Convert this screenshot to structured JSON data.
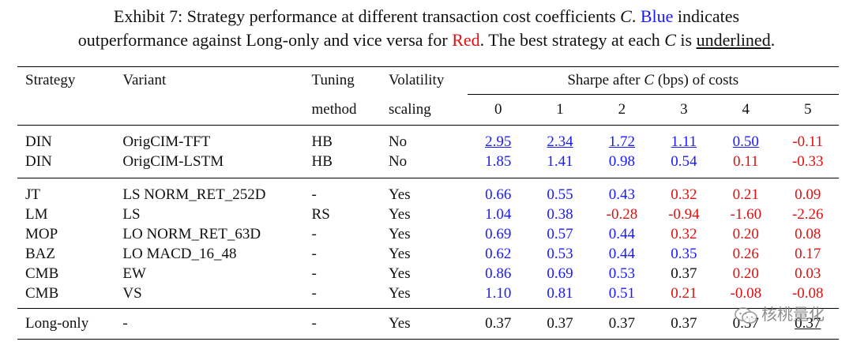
{
  "caption": {
    "part1": "Exhibit 7:  Strategy performance at different transaction cost coefficients ",
    "var_c": "C",
    "part2": ". ",
    "blue_word": "Blue",
    "part3": " indicates",
    "part4": "outperformance against Long-only and vice versa for ",
    "red_word": "Red",
    "part5": ". The best strategy at each ",
    "var_c2": "C",
    "part6": " is ",
    "underlined_word": "underlined",
    "part7": "."
  },
  "headers": {
    "strategy": "Strategy",
    "variant": "Variant",
    "tuning_line1": "Tuning",
    "tuning_line2": "method",
    "vol_line1": "Volatility",
    "vol_line2": "scaling",
    "sharpe_pre": "Sharpe after ",
    "sharpe_var": "C",
    "sharpe_post": " (bps) of costs",
    "cost_levels": [
      "0",
      "1",
      "2",
      "3",
      "4",
      "5"
    ]
  },
  "colors": {
    "outperform": "#1a1aff",
    "underperform": "#e01010",
    "neutral": "#111111"
  },
  "rows": [
    {
      "strategy": "DIN",
      "variant": "OrigCIM-TFT",
      "tuning": "HB",
      "vol": "No",
      "values": [
        "2.95",
        "2.34",
        "1.72",
        "1.11",
        "0.50",
        "-0.11"
      ],
      "colors": [
        "pos",
        "pos",
        "pos",
        "pos",
        "pos",
        "neg"
      ],
      "best": [
        true,
        true,
        true,
        true,
        true,
        false
      ]
    },
    {
      "strategy": "DIN",
      "variant": "OrigCIM-LSTM",
      "tuning": "HB",
      "vol": "No",
      "values": [
        "1.85",
        "1.41",
        "0.98",
        "0.54",
        "0.11",
        "-0.33"
      ],
      "colors": [
        "pos",
        "pos",
        "pos",
        "pos",
        "neg",
        "neg"
      ],
      "best": [
        false,
        false,
        false,
        false,
        false,
        false
      ]
    },
    {
      "strategy": "JT",
      "variant": "LS NORM_RET_252D",
      "tuning": "-",
      "vol": "Yes",
      "values": [
        "0.66",
        "0.55",
        "0.43",
        "0.32",
        "0.21",
        "0.09"
      ],
      "colors": [
        "pos",
        "pos",
        "pos",
        "neg",
        "neg",
        "neg"
      ],
      "best": [
        false,
        false,
        false,
        false,
        false,
        false
      ]
    },
    {
      "strategy": "LM",
      "variant": "LS",
      "tuning": "RS",
      "vol": "Yes",
      "values": [
        "1.04",
        "0.38",
        "-0.28",
        "-0.94",
        "-1.60",
        "-2.26"
      ],
      "colors": [
        "pos",
        "pos",
        "neg",
        "neg",
        "neg",
        "neg"
      ],
      "best": [
        false,
        false,
        false,
        false,
        false,
        false
      ]
    },
    {
      "strategy": "MOP",
      "variant": "LO NORM_RET_63D",
      "tuning": "-",
      "vol": "Yes",
      "values": [
        "0.69",
        "0.57",
        "0.44",
        "0.32",
        "0.20",
        "0.08"
      ],
      "colors": [
        "pos",
        "pos",
        "pos",
        "neg",
        "neg",
        "neg"
      ],
      "best": [
        false,
        false,
        false,
        false,
        false,
        false
      ]
    },
    {
      "strategy": "BAZ",
      "variant": "LO MACD_16_48",
      "tuning": "-",
      "vol": "Yes",
      "values": [
        "0.62",
        "0.53",
        "0.44",
        "0.35",
        "0.26",
        "0.17"
      ],
      "colors": [
        "pos",
        "pos",
        "pos",
        "pos",
        "neg",
        "neg"
      ],
      "best": [
        false,
        false,
        false,
        false,
        false,
        false
      ]
    },
    {
      "strategy": "CMB",
      "variant": "EW",
      "tuning": "-",
      "vol": "Yes",
      "values": [
        "0.86",
        "0.69",
        "0.53",
        "0.37",
        "0.20",
        "0.03"
      ],
      "colors": [
        "pos",
        "pos",
        "pos",
        "neu",
        "neg",
        "neg"
      ],
      "best": [
        false,
        false,
        false,
        false,
        false,
        false
      ]
    },
    {
      "strategy": "CMB",
      "variant": "VS",
      "tuning": "-",
      "vol": "Yes",
      "values": [
        "1.10",
        "0.81",
        "0.51",
        "0.21",
        "-0.08",
        "-0.08"
      ],
      "colors": [
        "pos",
        "pos",
        "pos",
        "neg",
        "neg",
        "neg"
      ],
      "best": [
        false,
        false,
        false,
        false,
        false,
        false
      ]
    }
  ],
  "baseline": {
    "strategy": "Long-only",
    "variant": "-",
    "tuning": "-",
    "vol": "Yes",
    "values": [
      "0.37",
      "0.37",
      "0.37",
      "0.37",
      "0.37",
      "0.37"
    ],
    "colors": [
      "neu",
      "neu",
      "neu",
      "neu",
      "neu",
      "neu"
    ],
    "best": [
      false,
      false,
      false,
      false,
      false,
      true
    ]
  },
  "watermark": {
    "icon": "wechat-icon",
    "text": "核桃量化"
  }
}
